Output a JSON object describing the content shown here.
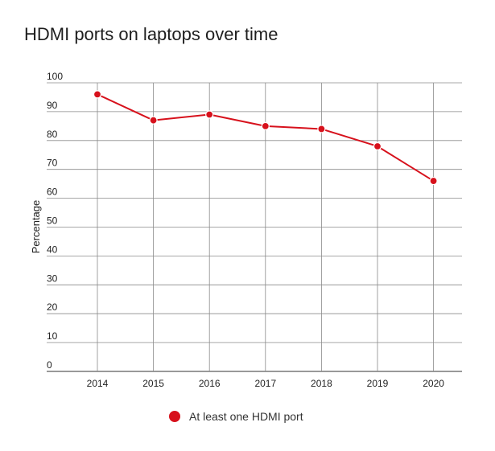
{
  "chart_data": {
    "type": "line",
    "title": "HDMI ports on laptops over time",
    "xlabel": "",
    "ylabel": "Percentage",
    "categories": [
      "2014",
      "2015",
      "2016",
      "2017",
      "2018",
      "2019",
      "2020"
    ],
    "series": [
      {
        "name": "At least one HDMI port",
        "values": [
          96,
          87,
          89,
          85,
          84,
          78,
          66
        ],
        "color": "#d7111c"
      }
    ],
    "ylim": [
      0,
      100
    ],
    "yticks": [
      0,
      10,
      20,
      30,
      40,
      50,
      60,
      70,
      80,
      90,
      100
    ],
    "grid": true,
    "legend_position": "bottom-center"
  }
}
